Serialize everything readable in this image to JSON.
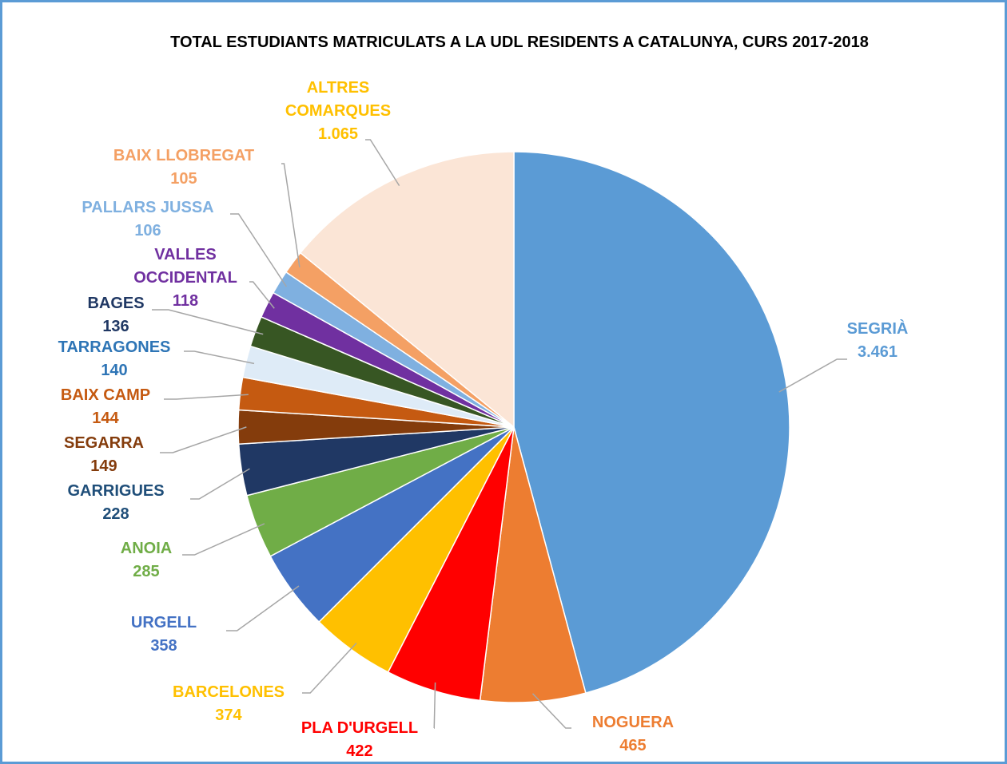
{
  "chart_data": {
    "type": "pie",
    "title": "TOTAL ESTUDIANTS MATRICULATS A LA UDL RESIDENTS A CATALUNYA, CURS 2017-2018",
    "categories": [
      "SEGRIÀ",
      "NOGUERA",
      "PLA D'URGELL",
      "BARCELONES",
      "URGELL",
      "ANOIA",
      "GARRIGUES",
      "SEGARRA",
      "BAIX CAMP",
      "TARRAGONES",
      "BAGES",
      "VALLES OCCIDENTAL",
      "PALLARS JUSSA",
      "BAIX LLOBREGAT",
      "ALTRES COMARQUES"
    ],
    "values": [
      3461,
      465,
      422,
      374,
      358,
      285,
      228,
      149,
      144,
      140,
      136,
      118,
      106,
      105,
      1065
    ],
    "value_labels": [
      "3.461",
      "465",
      "422",
      "374",
      "358",
      "285",
      "228",
      "149",
      "144",
      "140",
      "136",
      "118",
      "106",
      "105",
      "1.065"
    ],
    "colors": [
      "#5b9bd5",
      "#ed7d31",
      "#ff0000",
      "#ffc000",
      "#4472c4",
      "#70ad47",
      "#203864",
      "#843c0c",
      "#c55a11",
      "#deebf7",
      "#375623",
      "#7030a0",
      "#7fb0e0",
      "#f4a064",
      "#fbe5d6"
    ],
    "label_colors": [
      "#5b9bd5",
      "#ed7d31",
      "#ff0000",
      "#ffc000",
      "#4472c4",
      "#70ad47",
      "#1f4e79",
      "#843c0c",
      "#c55a11",
      "#2e75b6",
      "#203864",
      "#7030a0",
      "#7fb0e0",
      "#f4a064",
      "#ffc000"
    ]
  }
}
